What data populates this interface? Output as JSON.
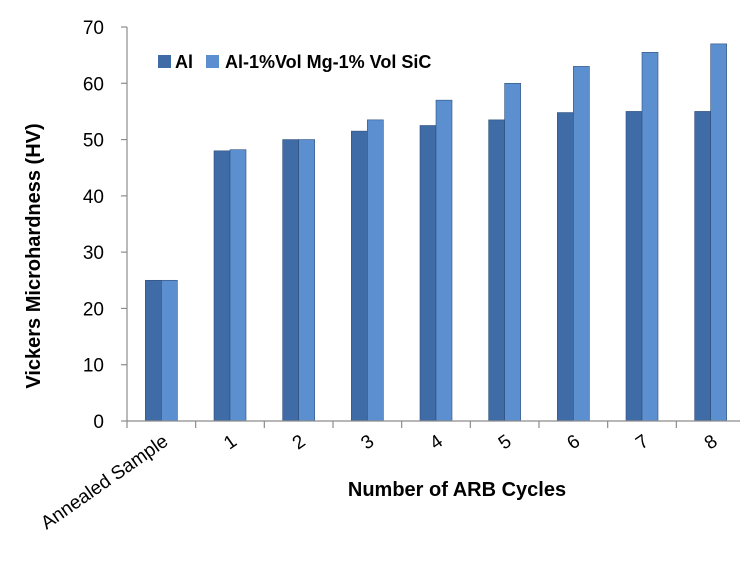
{
  "chart_data": {
    "type": "bar",
    "categories": [
      "Annealed Sample",
      "1",
      "2",
      "3",
      "4",
      "5",
      "6",
      "7",
      "8"
    ],
    "series": [
      {
        "name": "Al",
        "values": [
          25,
          48,
          50,
          51.5,
          52.5,
          53.5,
          54.8,
          55,
          55
        ]
      },
      {
        "name": "Al-1%Vol Mg-1% Vol SiC",
        "values": [
          25,
          48.2,
          50,
          53.5,
          57,
          60,
          63,
          65.5,
          67
        ]
      }
    ],
    "title": "",
    "xlabel": "Number of  ARB Cycles",
    "ylabel": "Vickers Microhardness (HV)",
    "ylim": [
      0,
      70
    ],
    "yticks": [
      0,
      10,
      20,
      30,
      40,
      50,
      60,
      70
    ],
    "grid": false,
    "legend_position": "top-left",
    "colors": {
      "Al": "#3f6ba6",
      "Al-1%Vol Mg-1% Vol SiC": "#5b8fd0",
      "axis": "#8c8c8c"
    }
  }
}
